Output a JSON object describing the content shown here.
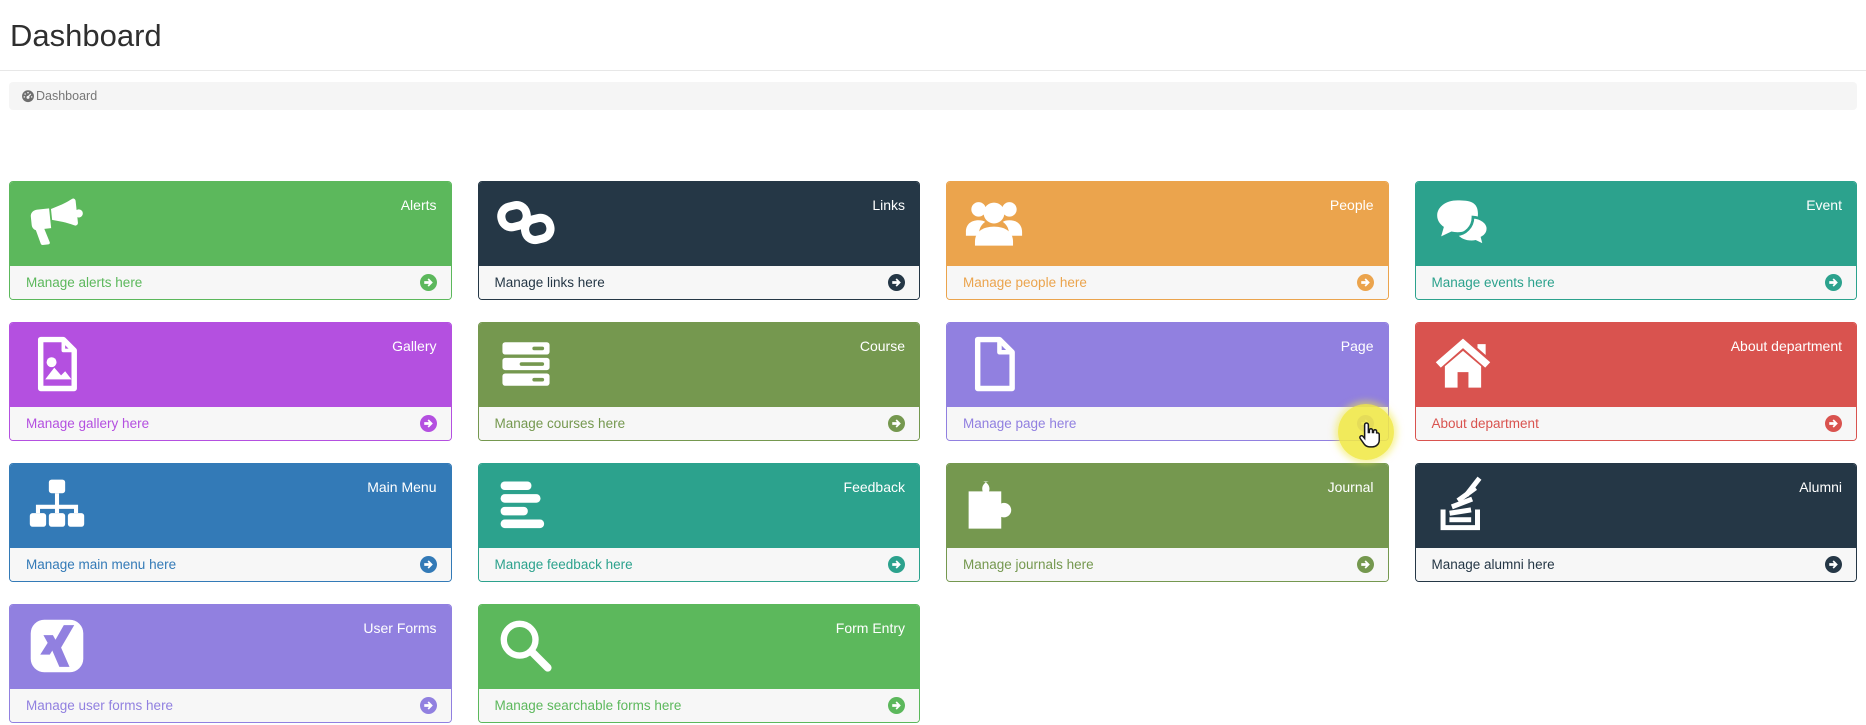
{
  "page": {
    "title": "Dashboard"
  },
  "breadcrumb": {
    "icon": "tachometer-icon",
    "label": "Dashboard"
  },
  "tiles": [
    {
      "id": "alerts",
      "label": "Alerts",
      "manage": "Manage alerts here",
      "color": "#5cb85c",
      "icon": "bullhorn"
    },
    {
      "id": "links",
      "label": "Links",
      "manage": "Manage links here",
      "color": "#253746",
      "icon": "chain"
    },
    {
      "id": "people",
      "label": "People",
      "manage": "Manage people here",
      "color": "#eba44d",
      "icon": "users"
    },
    {
      "id": "event",
      "label": "Event",
      "manage": "Manage events here",
      "color": "#2ca28d",
      "icon": "comments"
    },
    {
      "id": "gallery",
      "label": "Gallery",
      "manage": "Manage gallery here",
      "color": "#b450e0",
      "icon": "file-image"
    },
    {
      "id": "course",
      "label": "Course",
      "manage": "Manage courses here",
      "color": "#75984f",
      "icon": "server"
    },
    {
      "id": "page",
      "label": "Page",
      "manage": "Manage page here",
      "color": "#9180e0",
      "icon": "file"
    },
    {
      "id": "about",
      "label": "About department",
      "manage": "About department",
      "color": "#d9534f",
      "icon": "home"
    },
    {
      "id": "main-menu",
      "label": "Main Menu",
      "manage": "Manage main menu here",
      "color": "#337ab7",
      "icon": "sitemap"
    },
    {
      "id": "feedback",
      "label": "Feedback",
      "manage": "Manage feedback here",
      "color": "#2ca28d",
      "icon": "align-left"
    },
    {
      "id": "journal",
      "label": "Journal",
      "manage": "Manage journals here",
      "color": "#75984f",
      "icon": "puzzle-piece"
    },
    {
      "id": "alumni",
      "label": "Alumni",
      "manage": "Manage alumni here",
      "color": "#253746",
      "icon": "stack-overflow"
    },
    {
      "id": "user-forms",
      "label": "User Forms",
      "manage": "Manage user forms here",
      "color": "#9180e0",
      "icon": "xing"
    },
    {
      "id": "form-entry",
      "label": "Form Entry",
      "manage": "Manage searchable forms here",
      "color": "#5cb85c",
      "icon": "search"
    }
  ],
  "cursor": {
    "type": "hand-pointer",
    "highlight_color": "#f0e846",
    "over_tile": "page"
  }
}
